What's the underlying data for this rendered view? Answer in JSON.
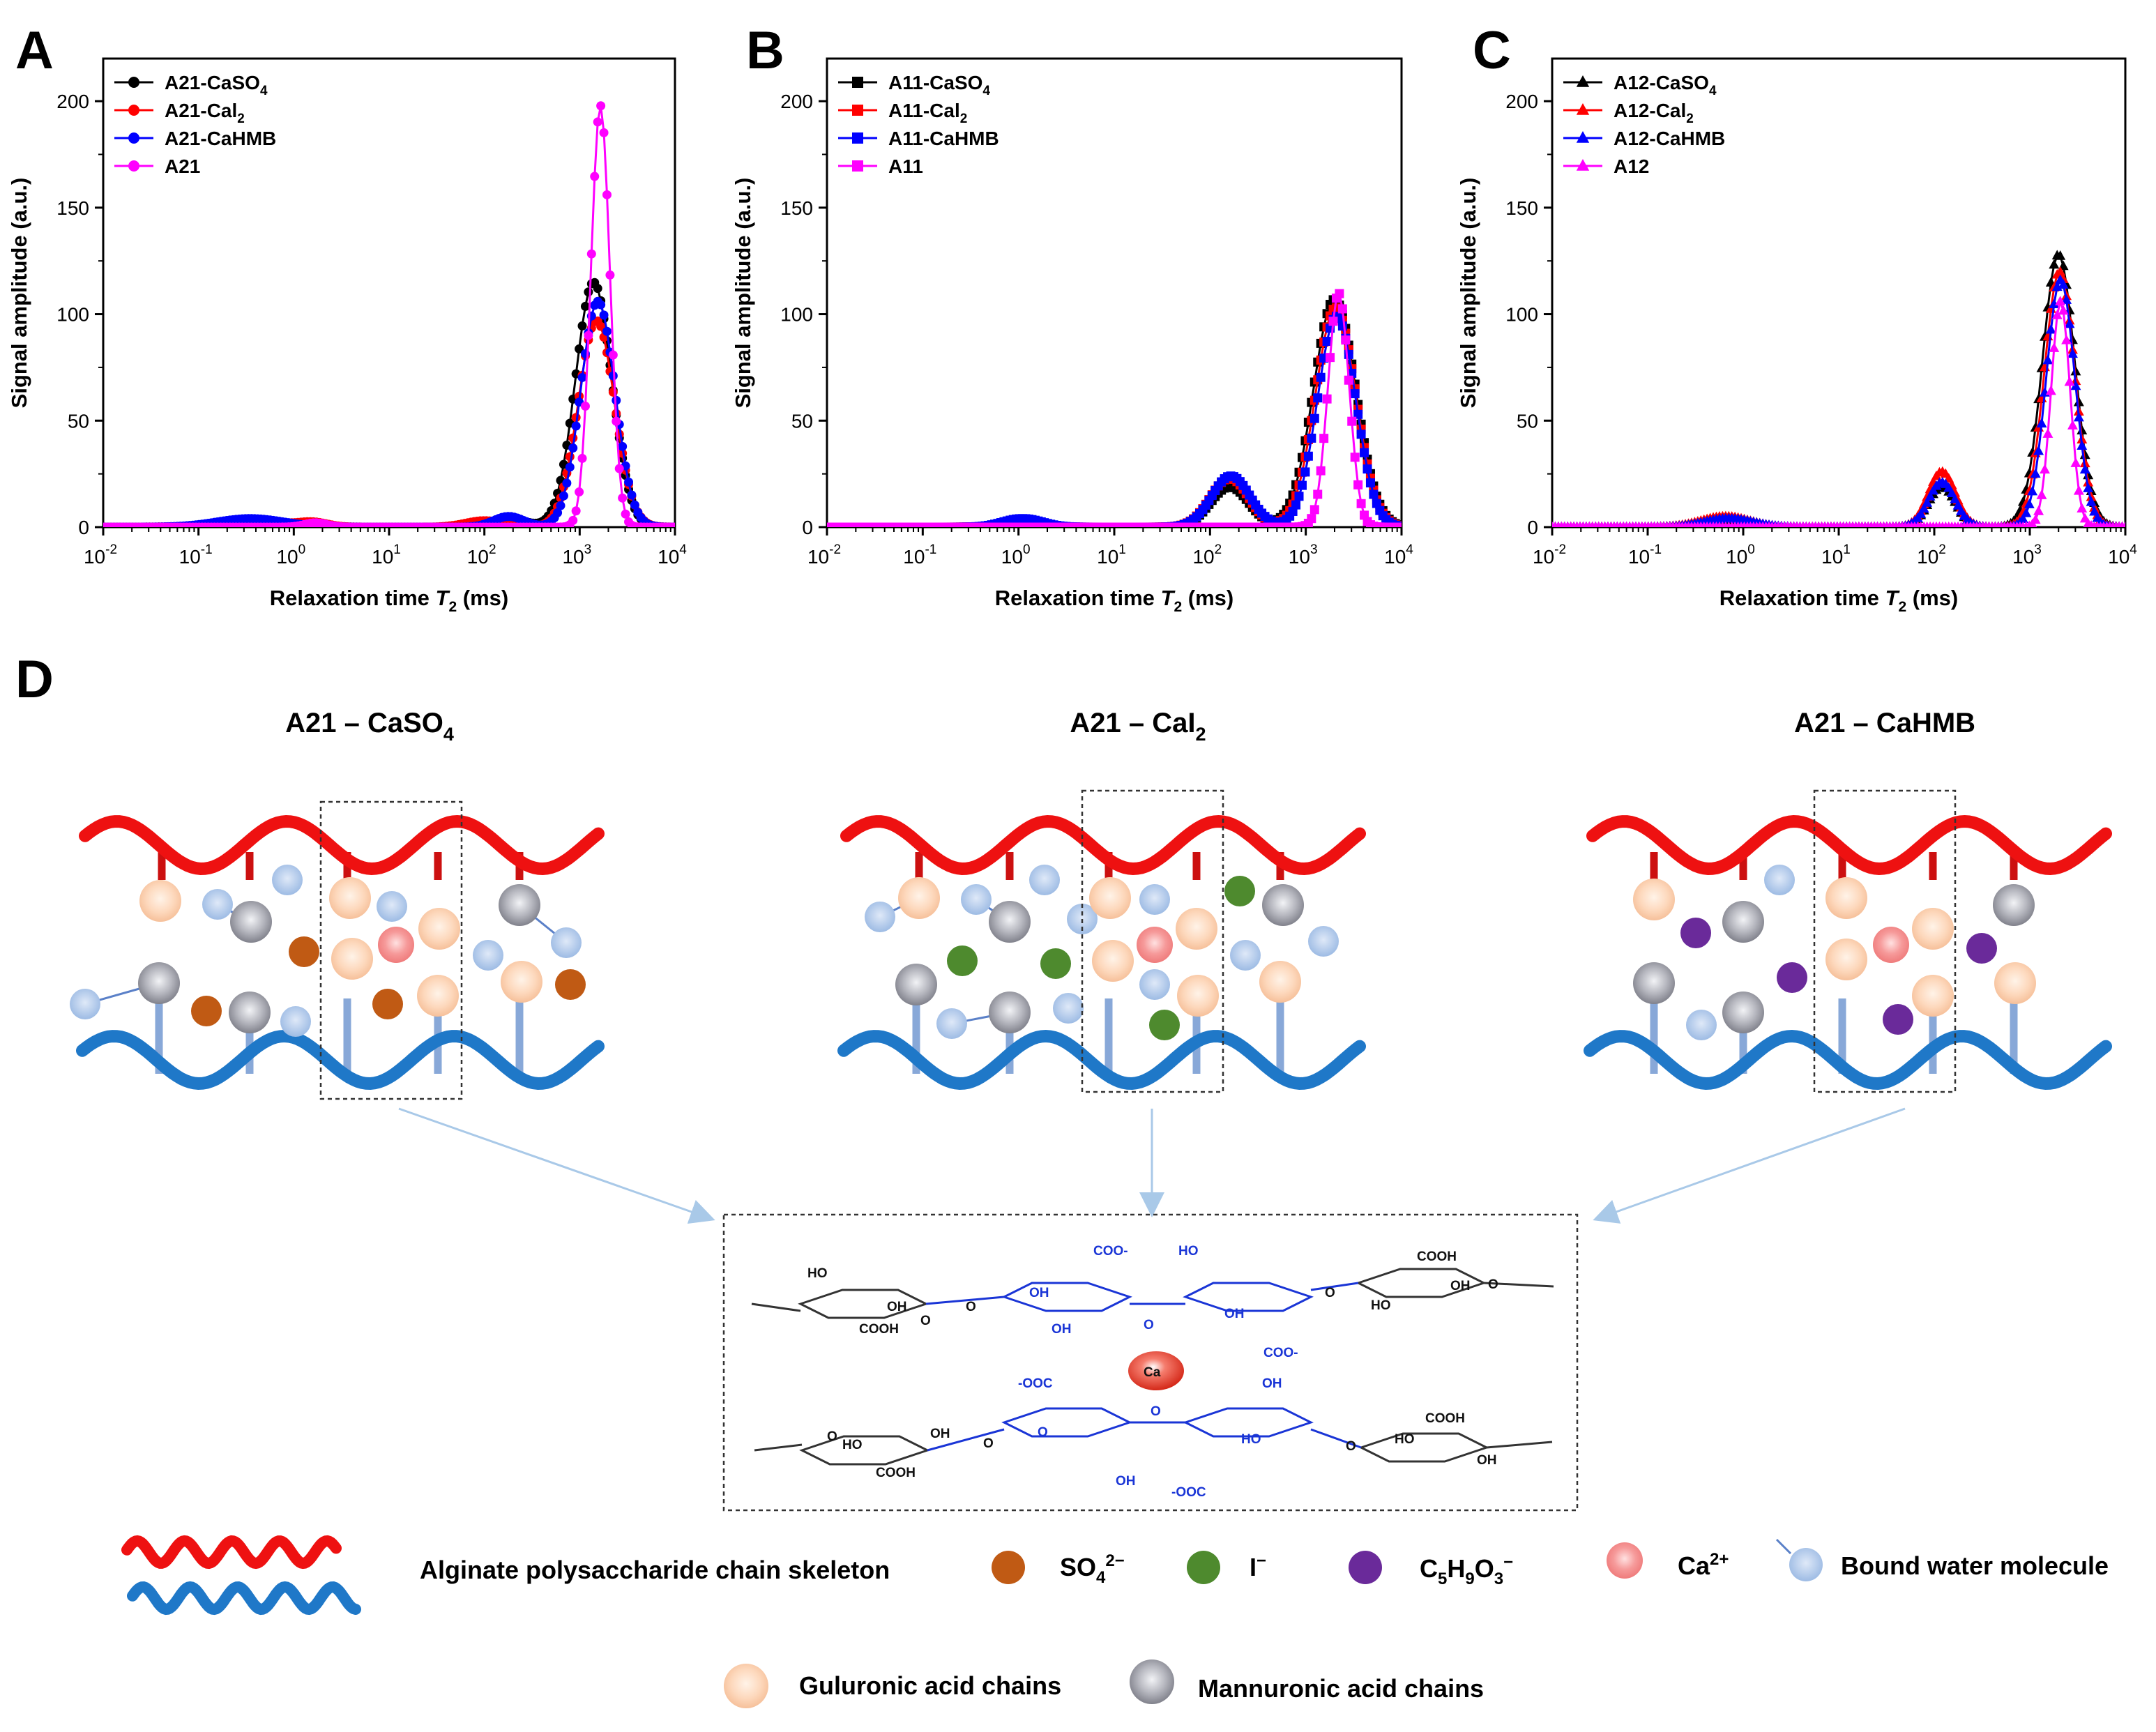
{
  "panels": {
    "A": {
      "label": "A"
    },
    "B": {
      "label": "B"
    },
    "C": {
      "label": "C"
    },
    "D": {
      "label": "D"
    }
  },
  "chart_data": [
    {
      "id": "A",
      "type": "line",
      "xscale": "log",
      "xlim": [
        0.01,
        10000
      ],
      "ylim": [
        0,
        220
      ],
      "xlabel_main": "Relaxation time ",
      "xlabel_sym": "T",
      "xlabel_sub": "2",
      "xlabel_unit": " (ms)",
      "ylabel": "Signal amplitude (a.u.)",
      "yticks": [
        "0",
        "50",
        "100",
        "150",
        "200"
      ],
      "xtick_base": "10",
      "xtick_exps": [
        "-2",
        "-1",
        "0",
        "1",
        "2",
        "3",
        "4"
      ],
      "legend_position": "top-left",
      "series": [
        {
          "name": "A21-CaSO",
          "sub": "4",
          "marker": "circle",
          "color": "#000000",
          "peaks": [
            {
              "x": 0.35,
              "w": 0.35,
              "h": 3
            },
            {
              "x": 1.6,
              "w": 0.15,
              "h": 1.5
            },
            {
              "x": 180,
              "w": 0.18,
              "h": 4
            },
            {
              "x": 1400,
              "w": 0.19,
              "h": 115
            }
          ]
        },
        {
          "name": "A21-Cal",
          "sub": "2",
          "marker": "circle",
          "color": "#ff0000",
          "peaks": [
            {
              "x": 0.35,
              "w": 0.35,
              "h": 3
            },
            {
              "x": 1.6,
              "w": 0.15,
              "h": 2
            },
            {
              "x": 100,
              "w": 0.2,
              "h": 3
            },
            {
              "x": 1500,
              "w": 0.19,
              "h": 97
            }
          ]
        },
        {
          "name": "A21-CaHMB",
          "sub": "",
          "marker": "circle",
          "color": "#0000ff",
          "peaks": [
            {
              "x": 0.35,
              "w": 0.35,
              "h": 4
            },
            {
              "x": 180,
              "w": 0.16,
              "h": 5
            },
            {
              "x": 1550,
              "w": 0.18,
              "h": 106
            }
          ]
        },
        {
          "name": "A21",
          "sub": "",
          "marker": "circle",
          "color": "#ff00ff",
          "peaks": [
            {
              "x": 1.7,
              "w": 0.12,
              "h": 2
            },
            {
              "x": 1650,
              "w": 0.1,
              "h": 198
            }
          ]
        }
      ]
    },
    {
      "id": "B",
      "type": "line",
      "xscale": "log",
      "xlim": [
        0.01,
        10000
      ],
      "ylim": [
        0,
        220
      ],
      "xlabel_main": "Relaxation time ",
      "xlabel_sym": "T",
      "xlabel_sub": "2",
      "xlabel_unit": " (ms)",
      "ylabel": "Signal amplitude (a.u.)",
      "yticks": [
        "0",
        "50",
        "100",
        "150",
        "200"
      ],
      "xtick_base": "10",
      "xtick_exps": [
        "-2",
        "-1",
        "0",
        "1",
        "2",
        "3",
        "4"
      ],
      "legend_position": "top-left",
      "series": [
        {
          "name": "A11-CaSO",
          "sub": "4",
          "marker": "square",
          "color": "#000000",
          "peaks": [
            {
              "x": 1.0,
              "w": 0.2,
              "h": 2
            },
            {
              "x": 160,
              "w": 0.2,
              "h": 19
            },
            {
              "x": 2000,
              "w": 0.22,
              "h": 107
            }
          ]
        },
        {
          "name": "A11-Cal",
          "sub": "2",
          "marker": "square",
          "color": "#ff0000",
          "peaks": [
            {
              "x": 1.0,
              "w": 0.2,
              "h": 2
            },
            {
              "x": 160,
              "w": 0.2,
              "h": 23
            },
            {
              "x": 2050,
              "w": 0.21,
              "h": 103
            }
          ]
        },
        {
          "name": "A11-CaHMB",
          "sub": "",
          "marker": "square",
          "color": "#0000ff",
          "peaks": [
            {
              "x": 1.1,
              "w": 0.2,
              "h": 4
            },
            {
              "x": 165,
              "w": 0.2,
              "h": 24
            },
            {
              "x": 2100,
              "w": 0.2,
              "h": 99
            }
          ]
        },
        {
          "name": "A11",
          "sub": "",
          "marker": "square",
          "color": "#ff00ff",
          "peaks": [
            {
              "x": 2200,
              "w": 0.11,
              "h": 110
            }
          ]
        }
      ]
    },
    {
      "id": "C",
      "type": "line",
      "xscale": "log",
      "xlim": [
        0.01,
        10000
      ],
      "ylim": [
        0,
        220
      ],
      "xlabel_main": "Relaxation time ",
      "xlabel_sym": "T",
      "xlabel_sub": "2",
      "xlabel_unit": " (ms)",
      "ylabel": "Signal amplitude (a.u.)",
      "yticks": [
        "0",
        "50",
        "100",
        "150",
        "200"
      ],
      "xtick_base": "10",
      "xtick_exps": [
        "-2",
        "-1",
        "0",
        "1",
        "2",
        "3",
        "4"
      ],
      "legend_position": "top-left",
      "series": [
        {
          "name": "A12-CaSO",
          "sub": "4",
          "marker": "triangle",
          "color": "#000000",
          "peaks": [
            {
              "x": 0.6,
              "w": 0.25,
              "h": 3
            },
            {
              "x": 120,
              "w": 0.14,
              "h": 19
            },
            {
              "x": 2000,
              "w": 0.17,
              "h": 128
            }
          ]
        },
        {
          "name": "A12-Cal",
          "sub": "2",
          "marker": "triangle",
          "color": "#ff0000",
          "peaks": [
            {
              "x": 0.65,
              "w": 0.25,
              "h": 5
            },
            {
              "x": 120,
              "w": 0.14,
              "h": 26
            },
            {
              "x": 2050,
              "w": 0.16,
              "h": 120
            }
          ]
        },
        {
          "name": "A12-CaHMB",
          "sub": "",
          "marker": "triangle",
          "color": "#0000ff",
          "peaks": [
            {
              "x": 0.7,
              "w": 0.25,
              "h": 4
            },
            {
              "x": 120,
              "w": 0.14,
              "h": 21
            },
            {
              "x": 2100,
              "w": 0.15,
              "h": 116
            }
          ]
        },
        {
          "name": "A12",
          "sub": "",
          "marker": "triangle",
          "color": "#ff00ff",
          "peaks": [
            {
              "x": 2100,
              "w": 0.1,
              "h": 106
            }
          ]
        }
      ]
    }
  ],
  "diagram": {
    "titles": [
      {
        "base": "A21 – CaSO",
        "sub": "4"
      },
      {
        "base": "A21 – CaI",
        "sub": "2"
      },
      {
        "base": "A21 – CaHMB",
        "sub": ""
      }
    ],
    "chem": {
      "ca": "Ca",
      "ho": "HO",
      "oh": "OH",
      "cooh": "COOH",
      "coo_minus": "COO-",
      "minus_ooc": "-OOC",
      "o": "O"
    },
    "legend": {
      "skeleton": "Alginate polysaccharide chain skeleton",
      "so4": "SO",
      "so4_sub": "4",
      "so4_sup": "2−",
      "iodide": "I",
      "iodide_sup": "−",
      "hmb": "C",
      "hmb_5": "5",
      "hmb_h": "H",
      "hmb_9": "9",
      "hmb_o": "O",
      "hmb_3": "3",
      "hmb_sup": "−",
      "ca": "Ca",
      "ca_sup": "2+",
      "water": "Bound water molecule",
      "guluronic": "Guluronic acid chains",
      "mannuronic": "Mannuronic acid chains"
    },
    "colors": {
      "red_chain": "#ee1111",
      "blue_chain": "#1f78c8",
      "so4": "#c05a14",
      "iodide": "#4e8a2e",
      "hmb": "#6a2a9a",
      "water": "#a9c4e8",
      "gul": "#fcd3b4",
      "man": "#a9aab2",
      "ca": "#f06a6a",
      "chem_blue": "#1a35d6"
    }
  }
}
